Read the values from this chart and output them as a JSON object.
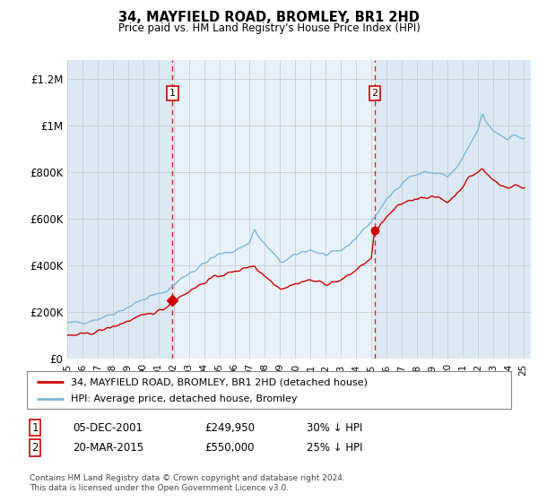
{
  "title": "34, MAYFIELD ROAD, BROMLEY, BR1 2HD",
  "subtitle": "Price paid vs. HM Land Registry's House Price Index (HPI)",
  "ylabel_ticks": [
    "£0",
    "£200K",
    "£400K",
    "£600K",
    "£800K",
    "£1M",
    "£1.2M"
  ],
  "ytick_values": [
    0,
    200000,
    400000,
    600000,
    800000,
    1000000,
    1200000
  ],
  "ylim": [
    0,
    1280000
  ],
  "xlim_start": 1995.0,
  "xlim_end": 2025.5,
  "background_color": "#dce9f5",
  "plot_bg": "#dce9f5",
  "hpi_color": "#7ab5d8",
  "price_color": "#cc0000",
  "sale1_x": 2001.92,
  "sale1_y": 249950,
  "sale2_x": 2015.22,
  "sale2_y": 550000,
  "annotation1_label": "05-DEC-2001",
  "annotation1_price": "£249,950",
  "annotation1_hpi": "30% ↓ HPI",
  "annotation2_label": "20-MAR-2015",
  "annotation2_price": "£550,000",
  "annotation2_hpi": "25% ↓ HPI",
  "legend_line1": "34, MAYFIELD ROAD, BROMLEY, BR1 2HD (detached house)",
  "legend_line2": "HPI: Average price, detached house, Bromley",
  "footer": "Contains HM Land Registry data © Crown copyright and database right 2024.\nThis data is licensed under the Open Government Licence v3.0.",
  "xtick_labels": [
    "95",
    "96",
    "97",
    "98",
    "99",
    "00",
    "01",
    "02",
    "03",
    "04",
    "05",
    "06",
    "07",
    "08",
    "09",
    "10",
    "11",
    "12",
    "13",
    "14",
    "15",
    "16",
    "17",
    "18",
    "19",
    "20",
    "21",
    "22",
    "23",
    "24",
    "25"
  ],
  "xtick_values": [
    1995,
    1996,
    1997,
    1998,
    1999,
    2000,
    2001,
    2002,
    2003,
    2004,
    2005,
    2006,
    2007,
    2008,
    2009,
    2010,
    2011,
    2012,
    2013,
    2014,
    2015,
    2016,
    2017,
    2018,
    2019,
    2020,
    2021,
    2022,
    2023,
    2024,
    2025
  ]
}
